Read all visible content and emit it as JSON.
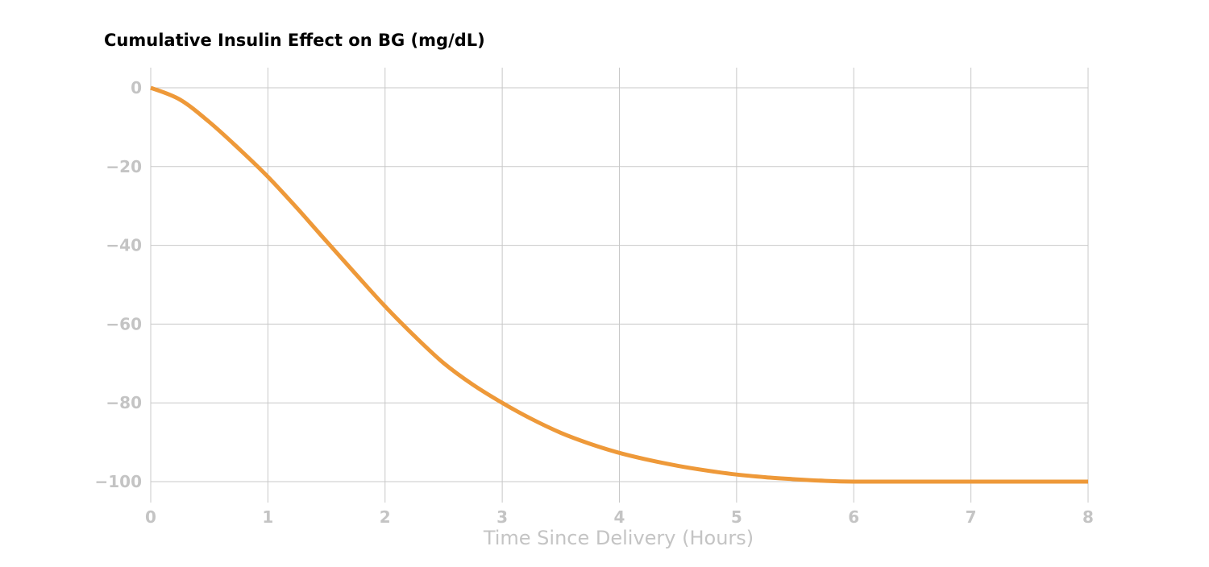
{
  "chart_data": {
    "type": "line",
    "title": "Cumulative Insulin Effect on BG (mg/dL)",
    "xlabel": "Time Since Delivery (Hours)",
    "ylabel": "",
    "xlim": [
      0,
      8
    ],
    "ylim": [
      -100,
      0
    ],
    "x_ticks": [
      "0",
      "1",
      "2",
      "3",
      "4",
      "5",
      "6",
      "7",
      "8"
    ],
    "y_ticks": [
      "0",
      "−20",
      "−40",
      "−60",
      "−80",
      "−100"
    ],
    "grid": true,
    "legend": "none",
    "series": [
      {
        "color": "#ee9939",
        "x": [
          0,
          0.25,
          0.5,
          0.75,
          1,
          1.25,
          1.5,
          1.75,
          2,
          2.25,
          2.5,
          2.75,
          3,
          3.25,
          3.5,
          3.75,
          4,
          4.25,
          4.5,
          4.75,
          5,
          5.25,
          5.5,
          5.75,
          6,
          6.5,
          7,
          7.5,
          8
        ],
        "y": [
          0,
          -3,
          -8.7,
          -15.4,
          -22.6,
          -30.6,
          -39.0,
          -47.3,
          -55.5,
          -63.0,
          -69.9,
          -75.4,
          -80.0,
          -84.1,
          -87.6,
          -90.4,
          -92.7,
          -94.5,
          -96.0,
          -97.2,
          -98.2,
          -98.9,
          -99.4,
          -99.8,
          -100,
          -100,
          -100,
          -100,
          -100
        ]
      }
    ]
  }
}
